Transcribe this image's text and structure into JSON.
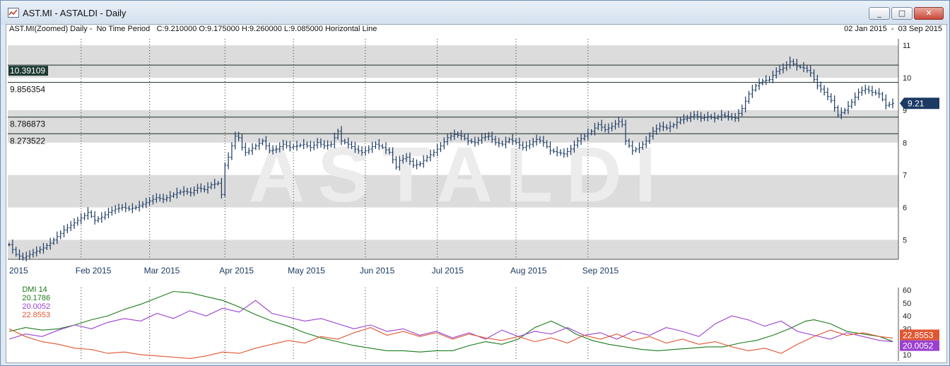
{
  "window": {
    "title": "AST.MI - ASTALDI - Daily",
    "buttons": [
      "minimize",
      "maximize",
      "close"
    ]
  },
  "chart_header": {
    "info": "AST.MI(Zoomed) Daily -  No Time Period   C:9.210000 O:9.175000 H:9.260000 L:9.085000 Horizontal Line",
    "date_range": "02 Jan 2015  -  03 Sep 2015"
  },
  "dmi_legend": {
    "label": "DMI 14",
    "adx": "20.1786",
    "plus_di": "20.0052",
    "minus_di": "22.8553"
  },
  "colors": {
    "price": "#1c3a63",
    "adx": "#1a7a1a",
    "plus_di": "#9b3fd0",
    "minus_di": "#e05530",
    "band": "#dcdcdc",
    "grid": "#333333",
    "last_price_tag": "#1c3a63"
  },
  "chart_data": [
    {
      "type": "ohlc",
      "title": "AST.MI - ASTALDI - Daily",
      "x_range": [
        "2015-01-02",
        "2015-09-03"
      ],
      "ylim": [
        4.4,
        11.2
      ],
      "y_ticks": [
        5,
        6,
        7,
        8,
        9,
        10,
        11
      ],
      "x_ticks": [
        "2015",
        "Feb 2015",
        "Mar 2015",
        "Apr 2015",
        "May 2015",
        "Jun 2015",
        "Jul 2015",
        "Aug 2015",
        "Sep 2015"
      ],
      "last_price": "9.21",
      "horizontal_lines": [
        {
          "label": "10.39109",
          "value": 10.39109,
          "highlight": true
        },
        {
          "label": "9.856354",
          "value": 9.856354
        },
        {
          "label": "8.786873",
          "value": 8.786873
        },
        {
          "label": "8.273522",
          "value": 8.273522
        }
      ],
      "close_path": [
        [
          0,
          4.85
        ],
        [
          2,
          4.55
        ],
        [
          4,
          4.45
        ],
        [
          6,
          4.55
        ],
        [
          8,
          4.65
        ],
        [
          10,
          4.75
        ],
        [
          12,
          4.9
        ],
        [
          14,
          5.1
        ],
        [
          16,
          5.3
        ],
        [
          18,
          5.45
        ],
        [
          20,
          5.6
        ],
        [
          22,
          5.75
        ],
        [
          23,
          5.85
        ],
        [
          25,
          5.6
        ],
        [
          27,
          5.7
        ],
        [
          29,
          5.85
        ],
        [
          31,
          5.95
        ],
        [
          33,
          6.0
        ],
        [
          35,
          5.95
        ],
        [
          37,
          6.0
        ],
        [
          39,
          6.1
        ],
        [
          41,
          6.2
        ],
        [
          43,
          6.3
        ],
        [
          45,
          6.25
        ],
        [
          47,
          6.35
        ],
        [
          49,
          6.45
        ],
        [
          51,
          6.5
        ],
        [
          53,
          6.45
        ],
        [
          55,
          6.6
        ],
        [
          57,
          6.55
        ],
        [
          59,
          6.7
        ],
        [
          61,
          6.75
        ],
        [
          62,
          6.4
        ],
        [
          63,
          7.3
        ],
        [
          64,
          7.55
        ],
        [
          65,
          7.9
        ],
        [
          66,
          8.2
        ],
        [
          67,
          8.15
        ],
        [
          68,
          7.85
        ],
        [
          69,
          7.7
        ],
        [
          70,
          7.75
        ],
        [
          72,
          7.9
        ],
        [
          74,
          8.05
        ],
        [
          76,
          7.75
        ],
        [
          78,
          7.8
        ],
        [
          80,
          7.95
        ],
        [
          82,
          7.85
        ],
        [
          84,
          7.9
        ],
        [
          86,
          7.95
        ],
        [
          88,
          7.85
        ],
        [
          90,
          8.0
        ],
        [
          92,
          7.9
        ],
        [
          94,
          7.95
        ],
        [
          96,
          8.35
        ],
        [
          97,
          8.05
        ],
        [
          99,
          7.95
        ],
        [
          101,
          7.8
        ],
        [
          103,
          7.7
        ],
        [
          105,
          7.8
        ],
        [
          107,
          7.95
        ],
        [
          109,
          7.85
        ],
        [
          111,
          7.7
        ],
        [
          113,
          7.25
        ],
        [
          114,
          7.45
        ],
        [
          116,
          7.55
        ],
        [
          118,
          7.3
        ],
        [
          120,
          7.35
        ],
        [
          122,
          7.55
        ],
        [
          124,
          7.7
        ],
        [
          126,
          7.9
        ],
        [
          128,
          8.15
        ],
        [
          130,
          8.25
        ],
        [
          132,
          8.2
        ],
        [
          134,
          8.05
        ],
        [
          136,
          8.0
        ],
        [
          138,
          8.15
        ],
        [
          140,
          8.2
        ],
        [
          142,
          8.0
        ],
        [
          144,
          7.95
        ],
        [
          146,
          8.1
        ],
        [
          148,
          8.0
        ],
        [
          150,
          7.85
        ],
        [
          152,
          7.95
        ],
        [
          154,
          8.1
        ],
        [
          156,
          8.0
        ],
        [
          158,
          7.75
        ],
        [
          160,
          7.7
        ],
        [
          162,
          7.65
        ],
        [
          164,
          7.8
        ],
        [
          166,
          8.05
        ],
        [
          168,
          8.2
        ],
        [
          170,
          8.35
        ],
        [
          172,
          8.55
        ],
        [
          174,
          8.4
        ],
        [
          176,
          8.5
        ],
        [
          178,
          8.65
        ],
        [
          179,
          8.55
        ],
        [
          180,
          8.05
        ],
        [
          182,
          7.75
        ],
        [
          184,
          7.85
        ],
        [
          186,
          8.05
        ],
        [
          188,
          8.35
        ],
        [
          190,
          8.5
        ],
        [
          192,
          8.45
        ],
        [
          194,
          8.55
        ],
        [
          196,
          8.7
        ],
        [
          198,
          8.75
        ],
        [
          200,
          8.85
        ],
        [
          202,
          8.75
        ],
        [
          204,
          8.8
        ],
        [
          206,
          8.75
        ],
        [
          208,
          8.85
        ],
        [
          210,
          8.8
        ],
        [
          212,
          8.75
        ],
        [
          214,
          9.05
        ],
        [
          216,
          9.5
        ],
        [
          218,
          9.75
        ],
        [
          220,
          9.9
        ],
        [
          222,
          9.95
        ],
        [
          224,
          10.2
        ],
        [
          226,
          10.3
        ],
        [
          228,
          10.5
        ],
        [
          230,
          10.35
        ],
        [
          232,
          10.3
        ],
        [
          234,
          10.15
        ],
        [
          236,
          9.75
        ],
        [
          238,
          9.55
        ],
        [
          240,
          9.3
        ],
        [
          242,
          8.85
        ],
        [
          244,
          9.0
        ],
        [
          246,
          9.25
        ],
        [
          248,
          9.55
        ],
        [
          250,
          9.65
        ],
        [
          252,
          9.55
        ],
        [
          254,
          9.5
        ],
        [
          256,
          9.15
        ],
        [
          258,
          9.21
        ]
      ],
      "bar_count": 259
    },
    {
      "type": "line",
      "title": "DMI 14",
      "ylim": [
        5,
        62
      ],
      "y_ticks": [
        10,
        20,
        30,
        40,
        50,
        60
      ],
      "series": [
        {
          "name": "DMI 14",
          "key": "adx",
          "last": "20.1786",
          "points": [
            [
              0,
              28
            ],
            [
              10,
              31
            ],
            [
              20,
              29
            ],
            [
              30,
              30
            ],
            [
              40,
              33
            ],
            [
              50,
              37
            ],
            [
              60,
              40
            ],
            [
              70,
              45
            ],
            [
              80,
              49
            ],
            [
              90,
              54
            ],
            [
              100,
              59
            ],
            [
              110,
              58
            ],
            [
              120,
              55
            ],
            [
              130,
              52
            ],
            [
              140,
              47
            ],
            [
              150,
              41
            ],
            [
              160,
              36
            ],
            [
              170,
              32
            ],
            [
              180,
              27
            ],
            [
              190,
              23
            ],
            [
              200,
              20
            ],
            [
              210,
              17
            ],
            [
              220,
              15
            ],
            [
              230,
              13
            ],
            [
              240,
              13
            ],
            [
              250,
              12
            ],
            [
              260,
              13
            ],
            [
              270,
              13
            ],
            [
              280,
              17
            ],
            [
              290,
              20
            ],
            [
              300,
              18
            ],
            [
              310,
              22
            ],
            [
              320,
              31
            ],
            [
              330,
              36
            ],
            [
              340,
              30
            ],
            [
              345,
              26
            ],
            [
              355,
              21
            ],
            [
              365,
              18
            ],
            [
              375,
              16
            ],
            [
              385,
              14
            ],
            [
              395,
              13
            ],
            [
              405,
              14
            ],
            [
              415,
              15
            ],
            [
              425,
              16
            ],
            [
              435,
              16
            ],
            [
              445,
              19
            ],
            [
              455,
              21
            ],
            [
              465,
              25
            ],
            [
              475,
              30
            ],
            [
              485,
              36
            ],
            [
              490,
              37
            ],
            [
              500,
              34
            ],
            [
              510,
              28
            ],
            [
              520,
              26
            ],
            [
              530,
              24
            ],
            [
              538,
              20.18
            ]
          ]
        },
        {
          "name": "20.0052",
          "key": "plus_di",
          "last": "20.0052",
          "points": [
            [
              0,
              22
            ],
            [
              10,
              26
            ],
            [
              20,
              24
            ],
            [
              30,
              29
            ],
            [
              40,
              33
            ],
            [
              50,
              30
            ],
            [
              60,
              35
            ],
            [
              70,
              38
            ],
            [
              80,
              36
            ],
            [
              90,
              42
            ],
            [
              100,
              38
            ],
            [
              110,
              44
            ],
            [
              120,
              40
            ],
            [
              130,
              46
            ],
            [
              140,
              43
            ],
            [
              150,
              52
            ],
            [
              160,
              42
            ],
            [
              170,
              39
            ],
            [
              180,
              36
            ],
            [
              190,
              38
            ],
            [
              200,
              34
            ],
            [
              210,
              30
            ],
            [
              220,
              33
            ],
            [
              230,
              28
            ],
            [
              240,
              30
            ],
            [
              250,
              25
            ],
            [
              260,
              28
            ],
            [
              270,
              23
            ],
            [
              280,
              27
            ],
            [
              290,
              22
            ],
            [
              300,
              29
            ],
            [
              310,
              24
            ],
            [
              320,
              28
            ],
            [
              330,
              26
            ],
            [
              340,
              31
            ],
            [
              350,
              25
            ],
            [
              360,
              27
            ],
            [
              370,
              22
            ],
            [
              380,
              28
            ],
            [
              390,
              25
            ],
            [
              400,
              31
            ],
            [
              410,
              28
            ],
            [
              420,
              24
            ],
            [
              430,
              34
            ],
            [
              440,
              40
            ],
            [
              450,
              37
            ],
            [
              460,
              32
            ],
            [
              470,
              36
            ],
            [
              480,
              28
            ],
            [
              490,
              25
            ],
            [
              500,
              22
            ],
            [
              510,
              27
            ],
            [
              520,
              24
            ],
            [
              530,
              21
            ],
            [
              538,
              20.0
            ]
          ]
        },
        {
          "name": "22.8553",
          "key": "minus_di",
          "last": "22.8553",
          "points": [
            [
              0,
              30
            ],
            [
              10,
              24
            ],
            [
              20,
              20
            ],
            [
              30,
              18
            ],
            [
              40,
              15
            ],
            [
              50,
              14
            ],
            [
              60,
              11
            ],
            [
              70,
              12
            ],
            [
              80,
              10
            ],
            [
              90,
              9
            ],
            [
              100,
              8
            ],
            [
              110,
              7
            ],
            [
              120,
              9
            ],
            [
              130,
              12
            ],
            [
              140,
              11
            ],
            [
              150,
              15
            ],
            [
              160,
              18
            ],
            [
              170,
              21
            ],
            [
              180,
              19
            ],
            [
              190,
              24
            ],
            [
              200,
              22
            ],
            [
              210,
              27
            ],
            [
              220,
              31
            ],
            [
              230,
              25
            ],
            [
              240,
              28
            ],
            [
              250,
              24
            ],
            [
              260,
              27
            ],
            [
              270,
              22
            ],
            [
              280,
              26
            ],
            [
              290,
              23
            ],
            [
              300,
              21
            ],
            [
              310,
              24
            ],
            [
              320,
              20
            ],
            [
              330,
              23
            ],
            [
              340,
              19
            ],
            [
              350,
              25
            ],
            [
              360,
              22
            ],
            [
              370,
              26
            ],
            [
              380,
              21
            ],
            [
              390,
              24
            ],
            [
              400,
              19
            ],
            [
              410,
              22
            ],
            [
              420,
              18
            ],
            [
              430,
              20
            ],
            [
              440,
              16
            ],
            [
              450,
              13
            ],
            [
              460,
              15
            ],
            [
              470,
              11
            ],
            [
              480,
              18
            ],
            [
              490,
              24
            ],
            [
              500,
              29
            ],
            [
              510,
              25
            ],
            [
              520,
              27
            ],
            [
              530,
              24
            ],
            [
              538,
              22.86
            ]
          ]
        }
      ]
    }
  ],
  "watermark": "ASTALDI"
}
